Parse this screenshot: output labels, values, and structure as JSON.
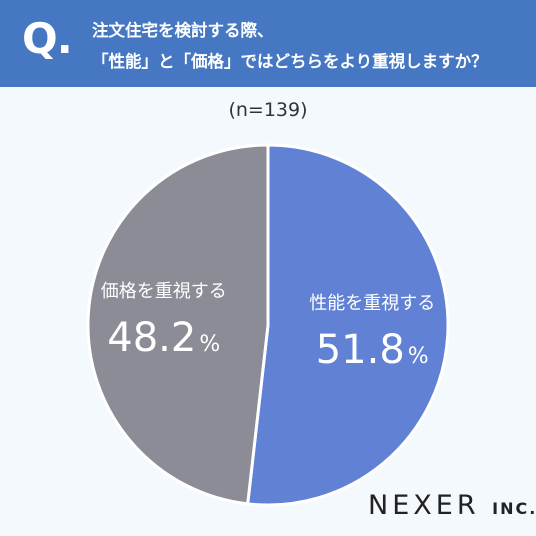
{
  "question": {
    "mark": "Q.",
    "line1": "注文住宅を検討する際、",
    "line2": "「性能」と「価格」ではどちらをより重視しますか？"
  },
  "sample_label": "(n=139)",
  "colors": {
    "header": "#4577c3",
    "performance": "#6181d4",
    "price": "#8b8c96",
    "background": "#f4f9fd"
  },
  "chart_data": {
    "type": "pie",
    "slices": [
      {
        "label": "性能を重視する",
        "value": 51.8,
        "display": "51.8",
        "unit": "%",
        "color": "#6181d4"
      },
      {
        "label": "価格を重視する",
        "value": 48.2,
        "display": "48.2",
        "unit": "%",
        "color": "#8b8c96"
      }
    ]
  },
  "brand": {
    "main": "NEXER",
    "sub": "INC."
  }
}
